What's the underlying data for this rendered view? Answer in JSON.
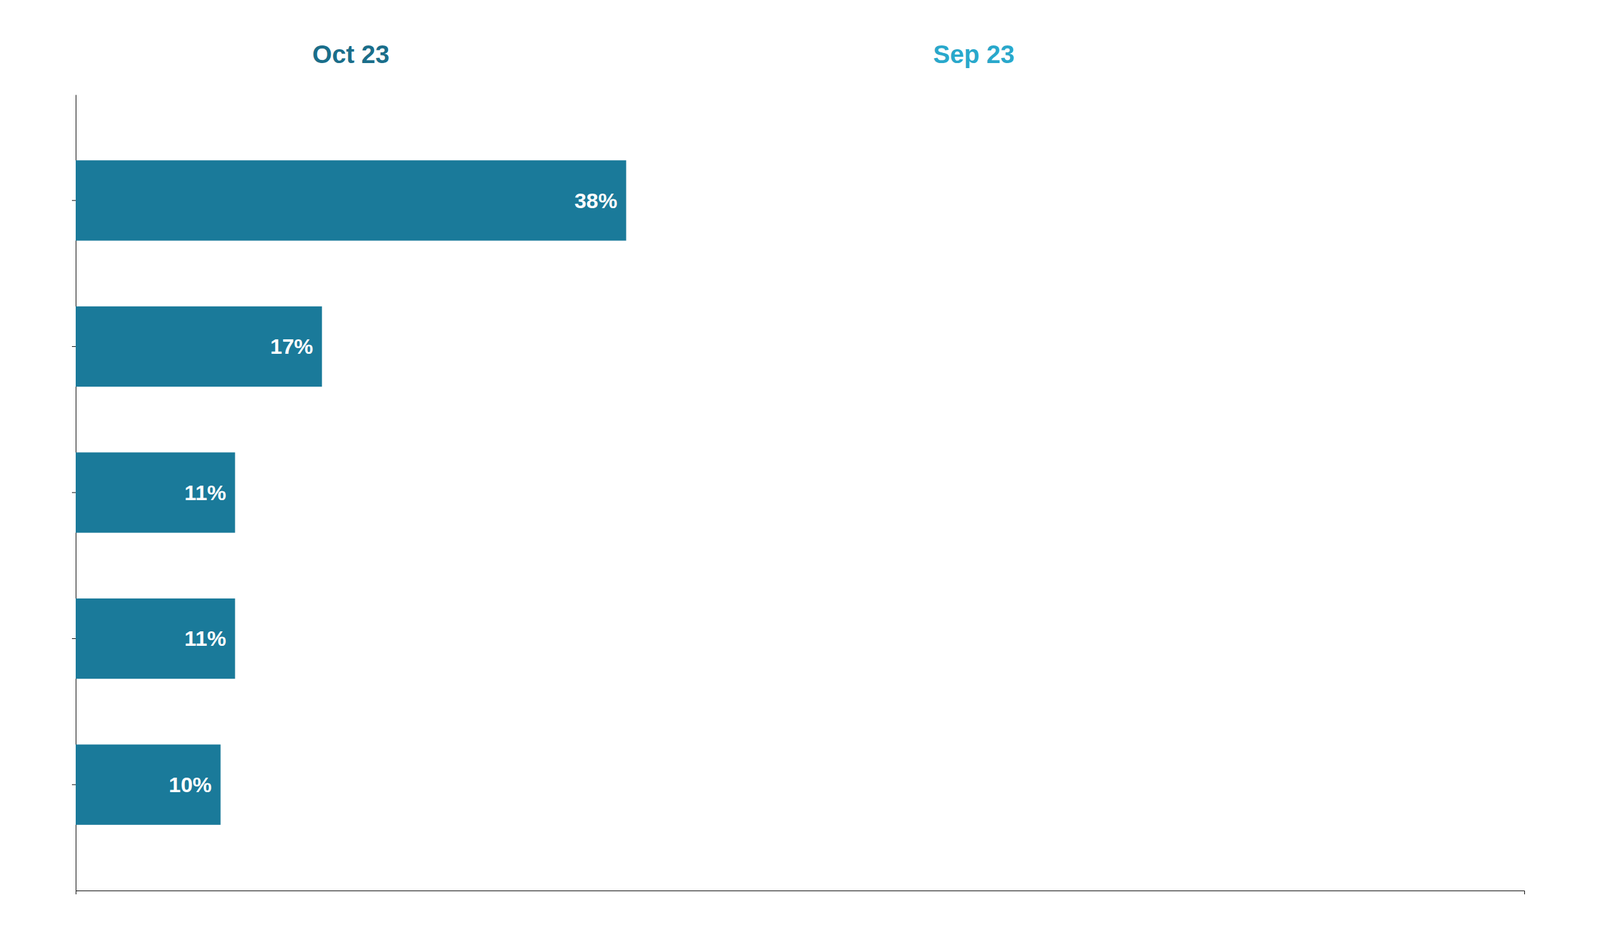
{
  "chart_data": {
    "type": "bar",
    "orientation": "horizontal",
    "categories": [
      null,
      null,
      null,
      null,
      null
    ],
    "values": [
      38,
      17,
      11,
      11,
      10
    ],
    "value_labels": [
      "38%",
      "17%",
      "11%",
      "11%",
      "10%"
    ],
    "data_labels": true,
    "color": "#1a7a9a",
    "xlim": [
      0,
      100
    ],
    "xticks": [],
    "tick_labels": false,
    "grid": false,
    "annotations": [
      {
        "text": "Oct 23",
        "color": "#1a6e8a"
      },
      {
        "text": "Sep 23",
        "color": "#29a8cb"
      }
    ]
  }
}
